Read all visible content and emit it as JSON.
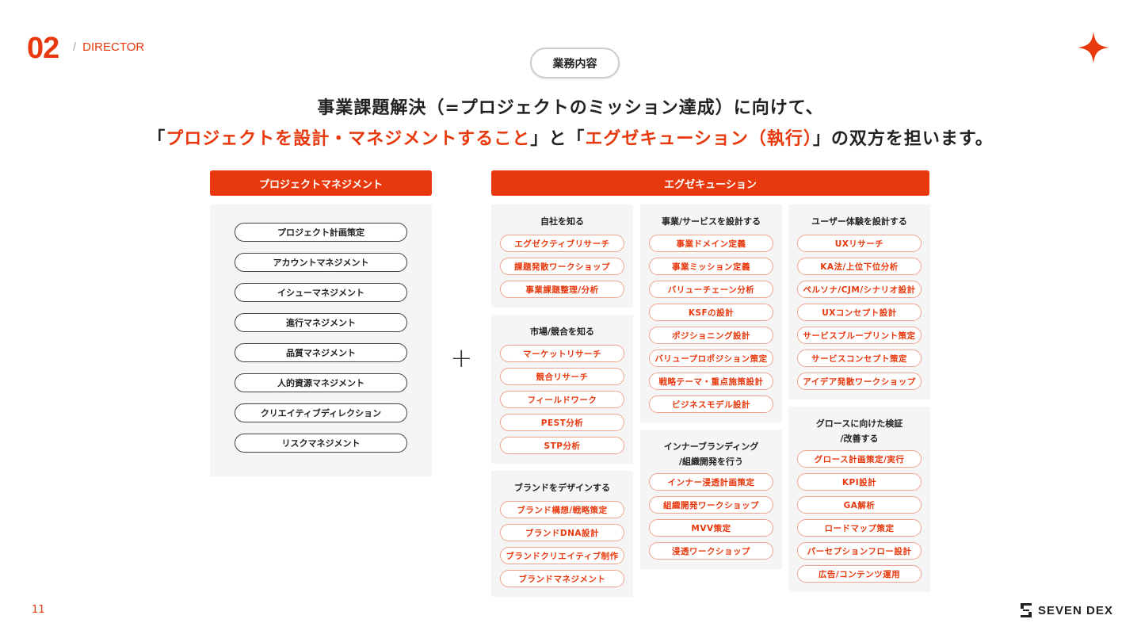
{
  "section": {
    "number": "02",
    "label": "DIRECTOR"
  },
  "tag": "業務内容",
  "headline": {
    "line1": "事業課題解決（=プロジェクトのミッション達成）に向けて、",
    "line2_a": "「",
    "line2_b": "プロジェクトを設計・マネジメントすること",
    "line2_c": "」と「",
    "line2_d": "エグゼキューション（執行）",
    "line2_e": "」の双方を担います。"
  },
  "left": {
    "title": "プロジェクトマネジメント",
    "items": [
      "プロジェクト計画策定",
      "アカウントマネジメント",
      "イシューマネジメント",
      "進行マネジメント",
      "品質マネジメント",
      "人的資源マネジメント",
      "クリエイティブディレクション",
      "リスクマネジメント"
    ]
  },
  "plus": "+",
  "right": {
    "title": "エグゼキューション",
    "columns": [
      [
        {
          "title": "自社を知る",
          "items": [
            "エグゼクティブリサーチ",
            "課題発散ワークショップ",
            "事業課題整理/分析"
          ]
        },
        {
          "title": "市場/競合を知る",
          "items": [
            "マーケットリサーチ",
            "競合リサーチ",
            "フィールドワーク",
            "PEST分析",
            "STP分析"
          ]
        },
        {
          "title": "ブランドをデザインする",
          "items": [
            "ブランド構想/戦略策定",
            "ブランドDNA設計",
            "ブランドクリエイティブ制作",
            "ブランドマネジメント"
          ]
        }
      ],
      [
        {
          "title": "事業/サービスを設計する",
          "items": [
            "事業ドメイン定義",
            "事業ミッション定義",
            "バリューチェーン分析",
            "KSFの設計",
            "ポジショニング設計",
            "バリュープロポジション策定",
            "戦略テーマ・重点施策設計",
            "ビジネスモデル設計"
          ]
        },
        {
          "title": "インナーブランディング\n/組織開発を行う",
          "items": [
            "インナー浸透計画策定",
            "組織開発ワークショップ",
            "MVV策定",
            "浸透ワークショップ"
          ]
        }
      ],
      [
        {
          "title": "ユーザー体験を設計する",
          "items": [
            "UXリサーチ",
            "KA法/上位下位分析",
            "ペルソナ/CJM/シナリオ設計",
            "UXコンセプト設計",
            "サービスブループリント策定",
            "サービスコンセプト策定",
            "アイデア発散ワークショップ"
          ]
        },
        {
          "title": "グロースに向けた検証\n/改善する",
          "items": [
            "グロース計画策定/実行",
            "KPI設計",
            "GA解析",
            "ロードマップ策定",
            "パーセプションフロー設計",
            "広告/コンテンツ運用"
          ]
        }
      ]
    ]
  },
  "page_number": "11",
  "brand": "SEVEN DEX",
  "colors": {
    "accent": "#e8380d",
    "panel": "#f5f5f5"
  }
}
